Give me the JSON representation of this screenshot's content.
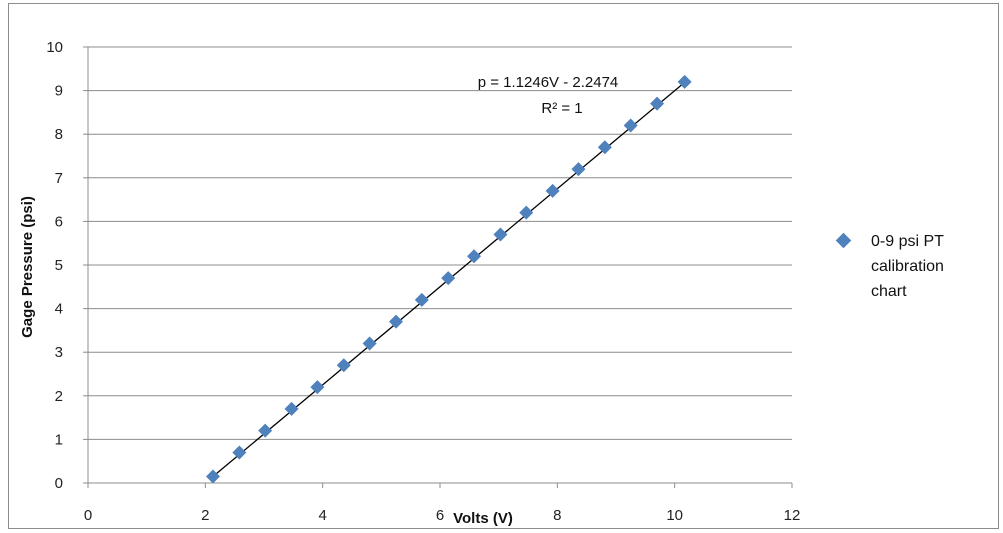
{
  "chart_data": {
    "type": "scatter",
    "title": "",
    "xlabel": "Volts (V)",
    "ylabel": "Gage Pressure (psi)",
    "xlim": [
      0,
      12
    ],
    "ylim": [
      0,
      10
    ],
    "x_ticks": [
      "0",
      "2",
      "4",
      "6",
      "8",
      "10",
      "12"
    ],
    "y_ticks": [
      "0",
      "1",
      "2",
      "3",
      "4",
      "5",
      "6",
      "7",
      "8",
      "9",
      "10"
    ],
    "grid": "horizontal",
    "legend_position": "right",
    "series": [
      {
        "name": "0-9 psi PT calibration chart",
        "color": "#4f81bd",
        "marker": "diamond",
        "x": [
          2.13,
          2.58,
          3.02,
          3.47,
          3.91,
          4.36,
          4.8,
          5.25,
          5.69,
          6.14,
          6.58,
          7.03,
          7.47,
          7.92,
          8.36,
          8.81,
          9.25,
          9.7,
          10.17
        ],
        "y": [
          0.15,
          0.7,
          1.2,
          1.7,
          2.2,
          2.7,
          3.2,
          3.7,
          4.2,
          4.7,
          5.2,
          5.7,
          6.2,
          6.7,
          7.2,
          7.7,
          8.2,
          8.7,
          9.2
        ]
      }
    ],
    "trendline": {
      "type": "linear",
      "slope": 1.1246,
      "intercept": -2.2474,
      "color": "#000000",
      "equation_label": "p = 1.1246V - 2.2474",
      "r2_label": "R² = 1"
    }
  }
}
